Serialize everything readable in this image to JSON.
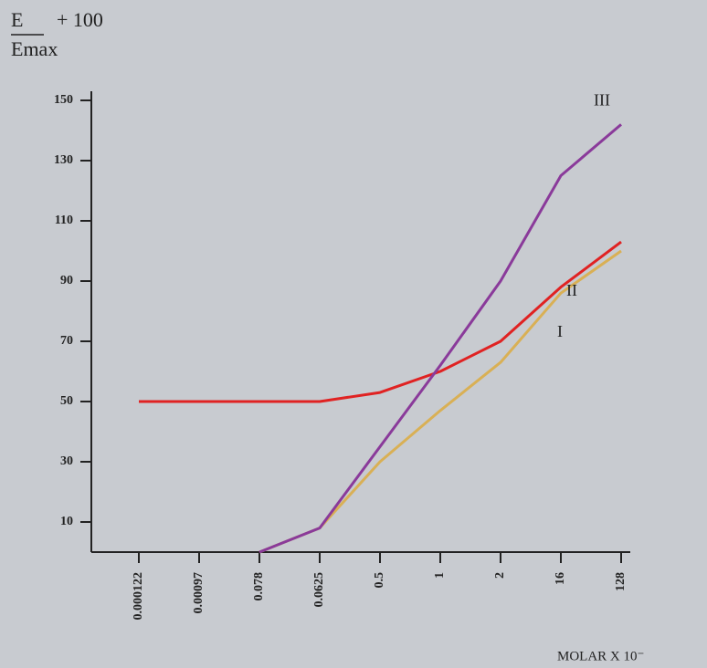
{
  "chart_data": {
    "type": "line",
    "ylabel_numerator": "E",
    "ylabel_operator": "+ 100",
    "ylabel_denominator": "Emax",
    "xlabel": "MOLAR X 10⁻",
    "categories": [
      "0.000122",
      "0.00097",
      "0.078",
      "0.0625",
      "0.5",
      "1",
      "2",
      "16",
      "128"
    ],
    "series": [
      {
        "name": "I",
        "color": "#d9b055",
        "values": [
          null,
          null,
          0,
          8,
          30,
          47,
          63,
          86,
          100
        ]
      },
      {
        "name": "II",
        "color": "#e02222",
        "values": [
          50,
          50,
          50,
          50,
          53,
          60,
          70,
          88,
          103
        ]
      },
      {
        "name": "III",
        "color": "#8a3a9a",
        "values": [
          null,
          null,
          0,
          8,
          35,
          62,
          90,
          125,
          142
        ]
      }
    ],
    "ylim": [
      0,
      150
    ],
    "yticks": [
      150,
      130,
      110,
      90,
      70,
      50,
      30,
      10
    ]
  }
}
